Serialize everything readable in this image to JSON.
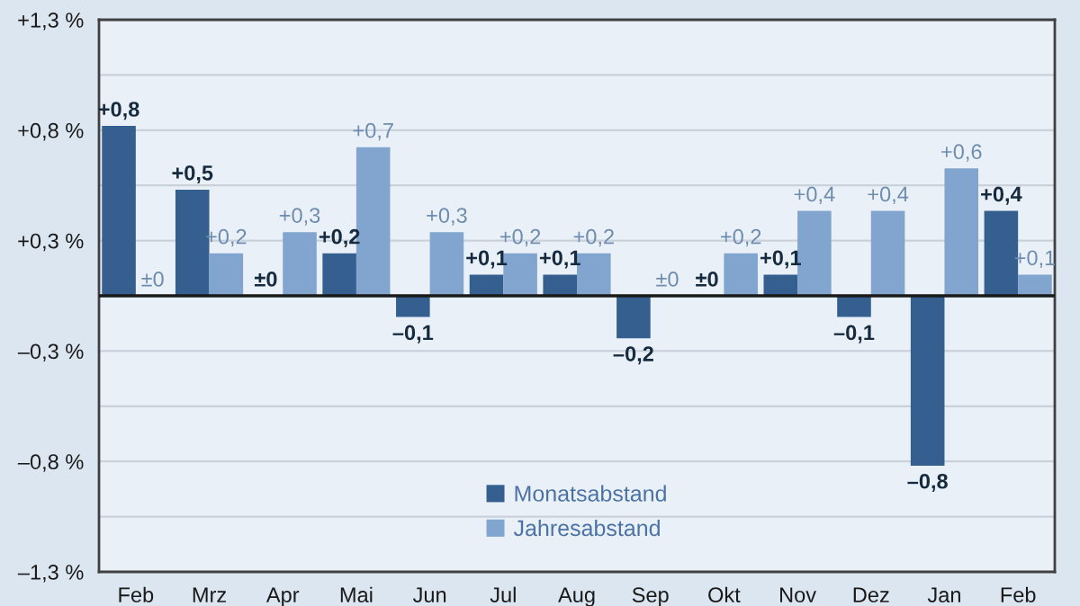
{
  "chart_data": {
    "type": "bar",
    "categories": [
      "Feb",
      "Mrz",
      "Apr",
      "Mai",
      "Jun",
      "Jul",
      "Aug",
      "Sep",
      "Okt",
      "Nov",
      "Dez",
      "Jan",
      "Feb"
    ],
    "series": [
      {
        "name": "Monatsabstand",
        "color": "#345f8f",
        "values": [
          0.8,
          0.5,
          0,
          0.2,
          -0.1,
          0.1,
          0.1,
          -0.2,
          0,
          0.1,
          -0.1,
          -0.8,
          0.4
        ],
        "value_labels": [
          "+0,8",
          "+0,5",
          "±0",
          "+0,2",
          "–0,1",
          "+0,1",
          "+0,1",
          "–0,2",
          "±0",
          "+0,1",
          "–0,1",
          "–0,8",
          "+0,4"
        ]
      },
      {
        "name": "Jahresabstand",
        "color": "#82a5cf",
        "values": [
          0,
          0.2,
          0.3,
          0.7,
          0.3,
          0.2,
          0.2,
          0,
          0.2,
          0.4,
          0.4,
          0.6,
          0.1
        ],
        "value_labels": [
          "±0",
          "+0,2",
          "+0,3",
          "+0,7",
          "+0,3",
          "+0,2",
          "+0,2",
          "±0",
          "+0,2",
          "+0,4",
          "+0,4",
          "+0,6",
          "+0,1"
        ]
      }
    ],
    "ylim": [
      -1.3,
      1.3
    ],
    "yticks": [
      {
        "value": 1.3,
        "label": "+1,3 %"
      },
      {
        "value": 1.04,
        "label": null
      },
      {
        "value": 0.78,
        "label": "+0,8 %"
      },
      {
        "value": 0.52,
        "label": null
      },
      {
        "value": 0.26,
        "label": "+0,3 %"
      },
      {
        "value": 0,
        "label": null
      },
      {
        "value": -0.26,
        "label": "–0,3 %"
      },
      {
        "value": -0.52,
        "label": null
      },
      {
        "value": -0.78,
        "label": "–0,8 %"
      },
      {
        "value": -1.04,
        "label": null
      },
      {
        "value": -1.3,
        "label": "–1,3 %"
      }
    ],
    "grid": "y",
    "legend": "bottom",
    "ref_lines": [
      {
        "axis": "y",
        "value": 0,
        "color": "#1a1a1a"
      }
    ]
  }
}
